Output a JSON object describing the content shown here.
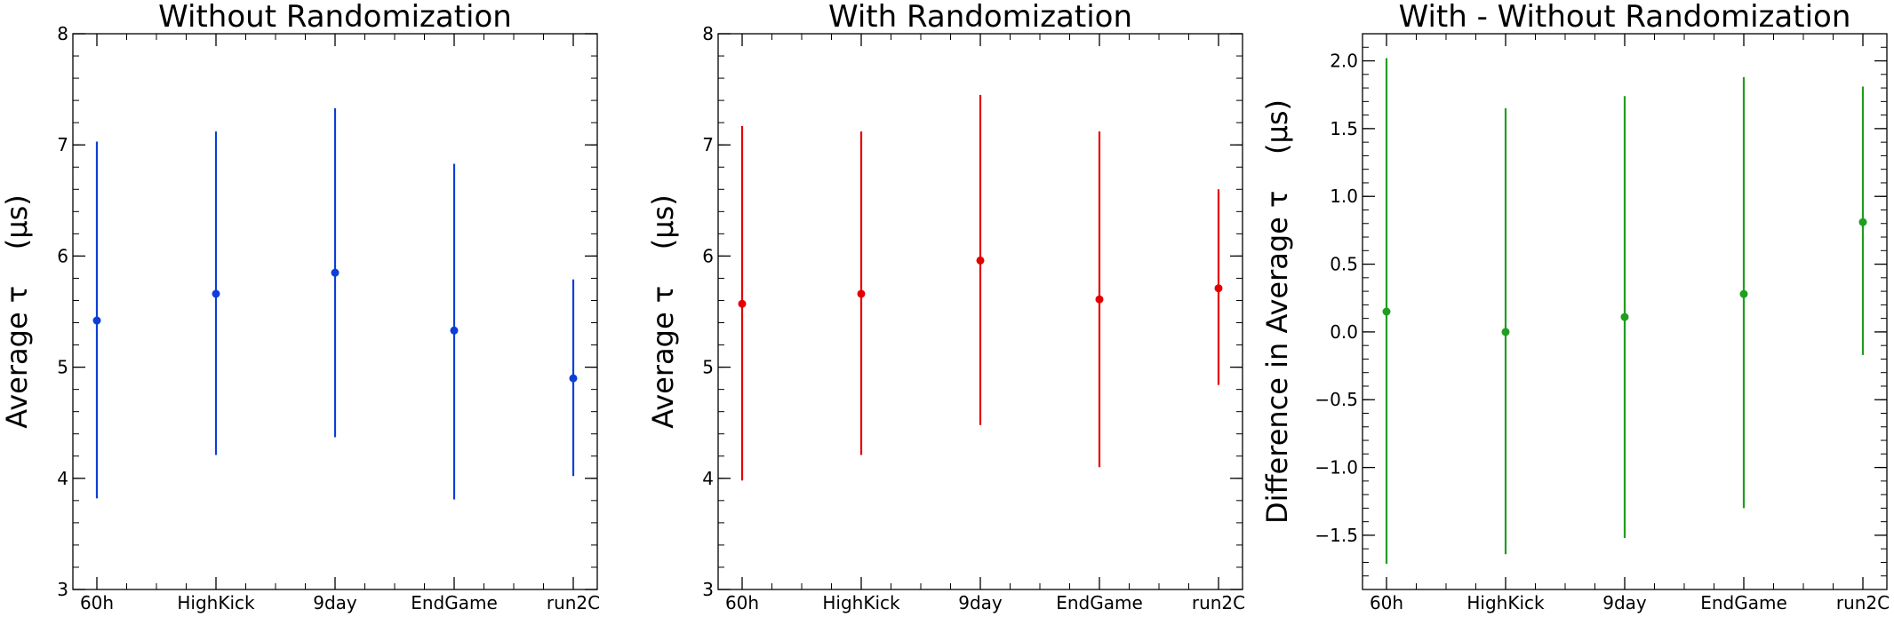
{
  "chart_data": [
    {
      "type": "scatter",
      "title": "Without Randomization",
      "xlabel": "",
      "ylabel": "Average τ    (μs)",
      "categories": [
        "60h",
        "HighKick",
        "9day",
        "EndGame",
        "run2C"
      ],
      "ylim": [
        3,
        8
      ],
      "yticks": [
        3,
        4,
        5,
        6,
        7,
        8
      ],
      "ytick_labels": [
        "3",
        "4",
        "5",
        "6",
        "7",
        "8"
      ],
      "color": "#0d3fd6",
      "grid": false,
      "series": [
        {
          "values": [
            5.42,
            5.66,
            5.85,
            5.33,
            4.9
          ],
          "err_low": [
            3.82,
            4.21,
            4.37,
            3.81,
            4.02
          ],
          "err_high": [
            7.03,
            7.12,
            7.33,
            6.83,
            5.79
          ]
        }
      ]
    },
    {
      "type": "scatter",
      "title": "With Randomization",
      "xlabel": "",
      "ylabel": "Average τ    (μs)",
      "categories": [
        "60h",
        "HighKick",
        "9day",
        "EndGame",
        "run2C"
      ],
      "ylim": [
        3,
        8
      ],
      "yticks": [
        3,
        4,
        5,
        6,
        7,
        8
      ],
      "ytick_labels": [
        "3",
        "4",
        "5",
        "6",
        "7",
        "8"
      ],
      "color": "#e50000",
      "grid": false,
      "series": [
        {
          "values": [
            5.57,
            5.66,
            5.96,
            5.61,
            5.71
          ],
          "err_low": [
            3.98,
            4.21,
            4.48,
            4.1,
            4.84
          ],
          "err_high": [
            7.17,
            7.12,
            7.45,
            7.12,
            6.6
          ]
        }
      ]
    },
    {
      "type": "scatter",
      "title": "With - Without Randomization",
      "xlabel": "",
      "ylabel": "Difference in Average τ    (μs)",
      "categories": [
        "60h",
        "HighKick",
        "9day",
        "EndGame",
        "run2C"
      ],
      "ylim": [
        -1.9,
        2.2
      ],
      "yticks": [
        -1.5,
        -1.0,
        -0.5,
        0.0,
        0.5,
        1.0,
        1.5,
        2.0
      ],
      "ytick_labels": [
        "−1.5",
        "−1.0",
        "−0.5",
        "0.0",
        "0.5",
        "1.0",
        "1.5",
        "2.0"
      ],
      "color": "#1f9e1f",
      "grid": false,
      "series": [
        {
          "values": [
            0.15,
            0.0,
            0.11,
            0.28,
            0.81
          ],
          "err_low": [
            -1.71,
            -1.64,
            -1.52,
            -1.3,
            -0.17
          ],
          "err_high": [
            2.02,
            1.65,
            1.74,
            1.88,
            1.81
          ]
        }
      ]
    }
  ]
}
